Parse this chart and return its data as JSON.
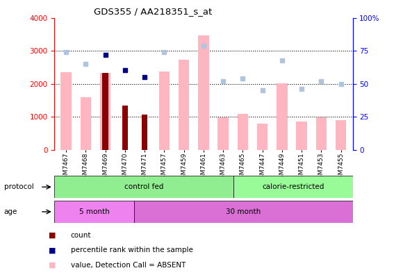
{
  "title": "GDS355 / AA218351_s_at",
  "samples": [
    "GSM7467",
    "GSM7468",
    "GSM7469",
    "GSM7470",
    "GSM7471",
    "GSM7457",
    "GSM7459",
    "GSM7461",
    "GSM7463",
    "GSM7465",
    "GSM7447",
    "GSM7449",
    "GSM7451",
    "GSM7453",
    "GSM7455"
  ],
  "value_absent": [
    2350,
    1600,
    2330,
    null,
    null,
    2370,
    2730,
    3470,
    980,
    1100,
    800,
    2010,
    850,
    990,
    900
  ],
  "rank_absent_pct": [
    74,
    65,
    null,
    null,
    null,
    74,
    null,
    79,
    52,
    54,
    45,
    68,
    46,
    52,
    50
  ],
  "count": [
    null,
    null,
    2330,
    1340,
    1060,
    null,
    null,
    null,
    null,
    null,
    null,
    null,
    null,
    null,
    null
  ],
  "percentile_rank_val": [
    null,
    null,
    2870,
    2420,
    2200,
    null,
    null,
    null,
    null,
    null,
    null,
    null,
    null,
    null,
    null
  ],
  "ylim_left": [
    0,
    4000
  ],
  "ylim_right": [
    0,
    100
  ],
  "left_ticks": [
    0,
    1000,
    2000,
    3000,
    4000
  ],
  "right_ticks": [
    0,
    25,
    50,
    75,
    100
  ],
  "bar_color_absent": "#FFB6C1",
  "bar_color_count": "#8B0000",
  "dot_color_rank_absent": "#B0C4DE",
  "dot_color_percentile": "#00008B",
  "protocol_split": 9,
  "age_split": 4,
  "n_samples": 15,
  "protocol_color_1": "#90EE90",
  "protocol_color_2": "#98FB98",
  "age_color_1": "#EE82EE",
  "age_color_2": "#DA70D6",
  "xtick_bg": "#C8C8C8",
  "left_tick_color": "red",
  "right_tick_color": "blue"
}
